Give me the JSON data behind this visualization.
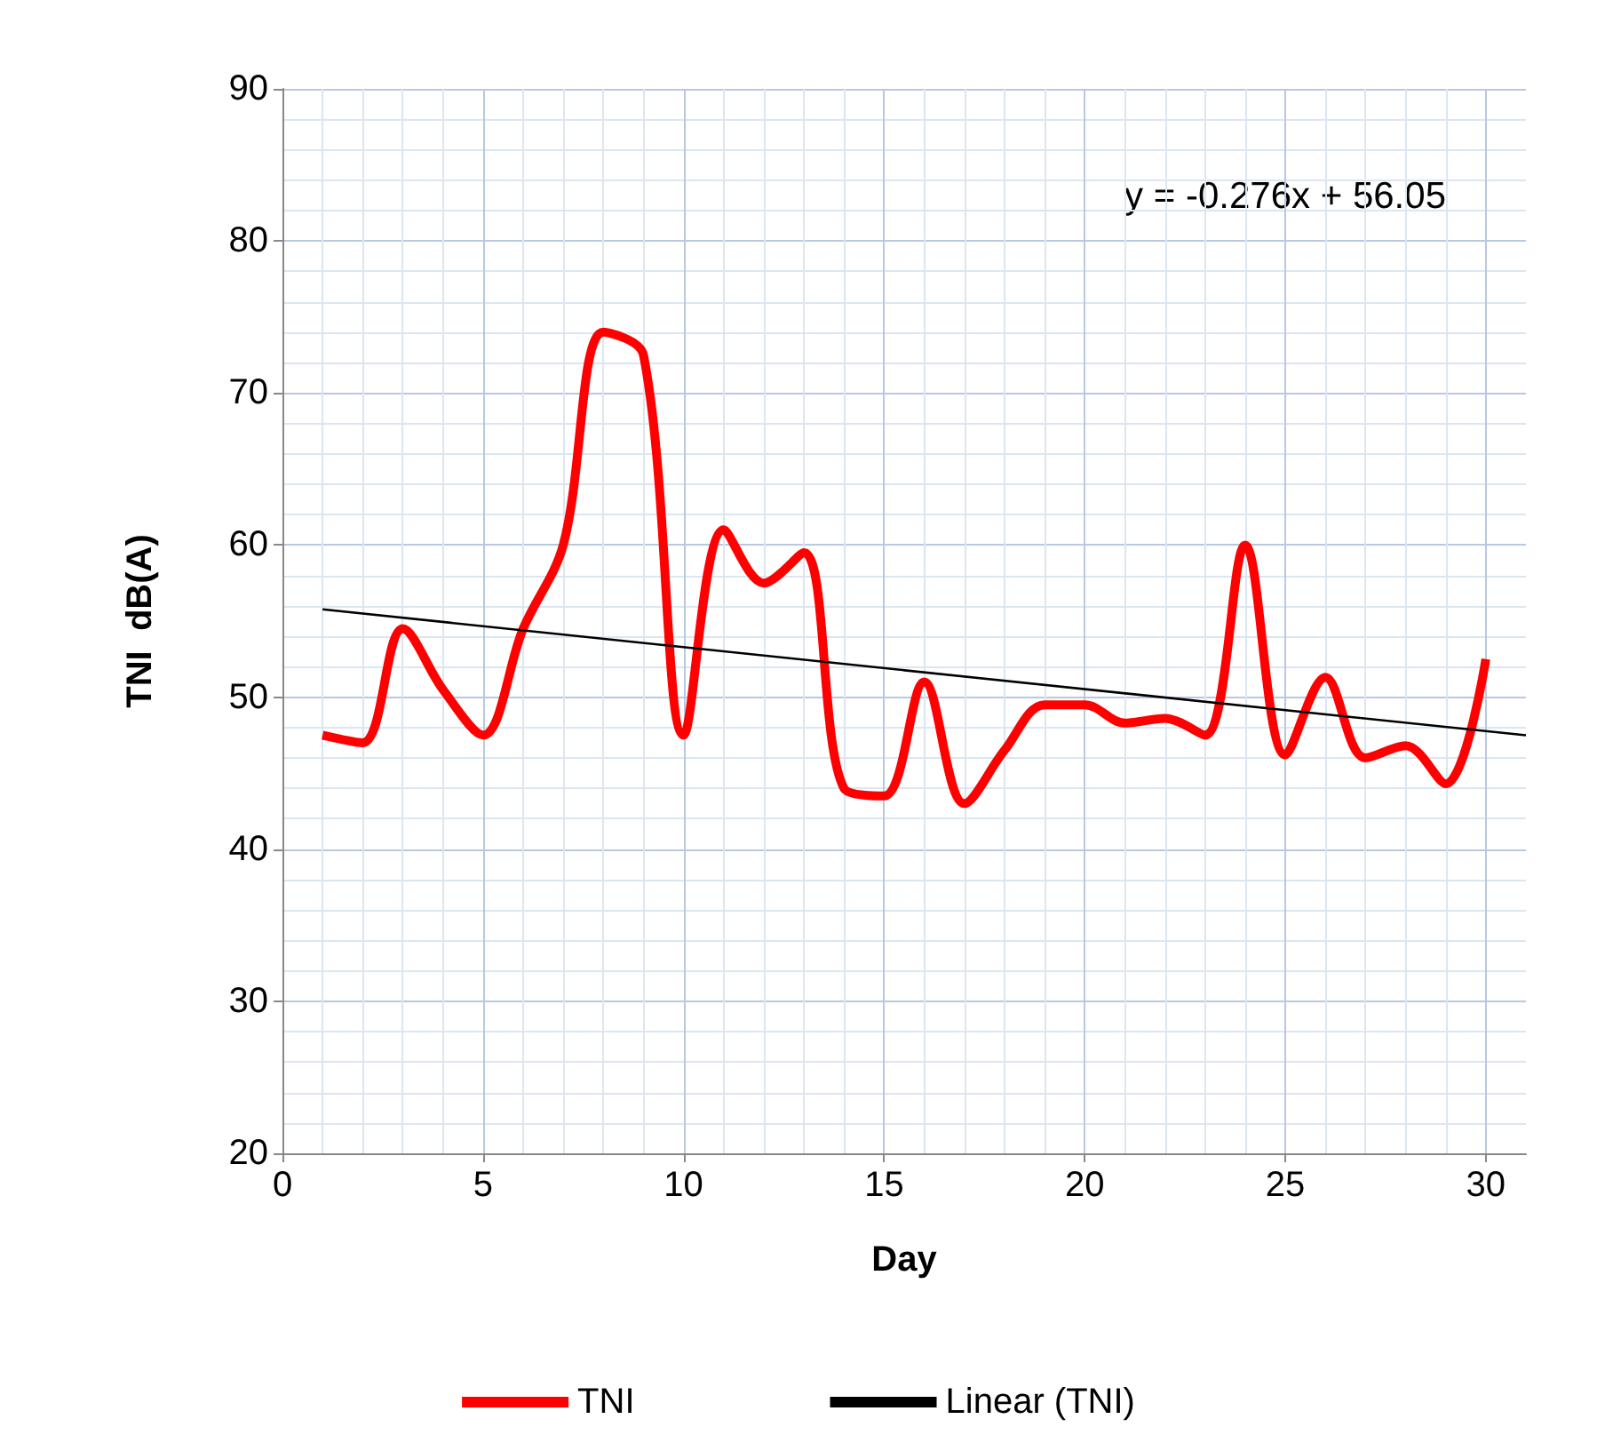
{
  "chart_data": {
    "type": "line",
    "xlabel": "Day",
    "ylabel": "TNI  dB(A)",
    "x": [
      1,
      2,
      3,
      4,
      5,
      6,
      7,
      8,
      9,
      10,
      11,
      12,
      13,
      14,
      15,
      16,
      17,
      18,
      19,
      20,
      21,
      22,
      23,
      24,
      25,
      26,
      27,
      28,
      29,
      30
    ],
    "series": [
      {
        "name": "TNI",
        "color": "#ff0000",
        "values": [
          47.5,
          47,
          54.5,
          50.5,
          47.5,
          54.5,
          60,
          74,
          72.5,
          47.5,
          61,
          57.5,
          59.5,
          44,
          43.5,
          51,
          43,
          46.5,
          49.5,
          49.5,
          48.3,
          48.6,
          47.5,
          60,
          46.2,
          51.3,
          46,
          46.8,
          44.3,
          52.5
        ]
      },
      {
        "name": "Linear (TNI)",
        "type": "line",
        "color": "#000000",
        "x": [
          1,
          31
        ],
        "values": [
          55.77,
          47.49
        ]
      }
    ],
    "xlim": [
      0,
      31
    ],
    "xticks": [
      0,
      5,
      10,
      15,
      20,
      25,
      30
    ],
    "ylim": [
      20,
      90
    ],
    "yticks": [
      20,
      30,
      40,
      50,
      60,
      70,
      80,
      90
    ],
    "grid": true,
    "legend": "bottom",
    "marker": "none",
    "line_style": "solid",
    "annotations": [
      "y = -0.276x + 56.05"
    ]
  }
}
